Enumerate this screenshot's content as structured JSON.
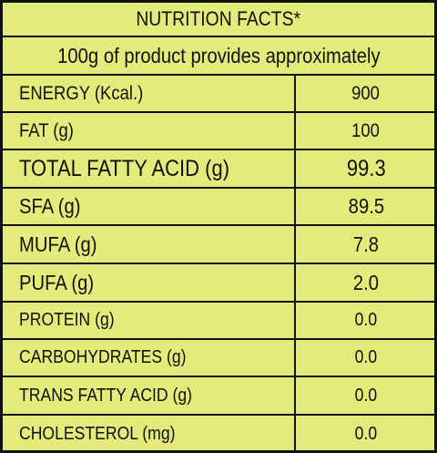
{
  "header": {
    "title": "NUTRITION FACTS*",
    "subtitle": "100g of product provides approximately"
  },
  "table": {
    "rows": [
      [
        "ENERGY (Kcal.)",
        "900"
      ],
      [
        "FAT (g)",
        "100"
      ],
      [
        "TOTAL FATTY ACID (g)",
        "99.3"
      ],
      [
        "SFA (g)",
        "89.5"
      ],
      [
        "MUFA (g)",
        "7.8"
      ],
      [
        "PUFA (g)",
        "2.0"
      ],
      [
        "PROTEIN (g)",
        "0.0"
      ],
      [
        "CARBOHYDRATES (g)",
        "0.0"
      ],
      [
        "TRANS FATTY ACID (g)",
        "0.0"
      ],
      [
        "CHOLESTEROL (mg)",
        "0.0"
      ]
    ]
  }
}
